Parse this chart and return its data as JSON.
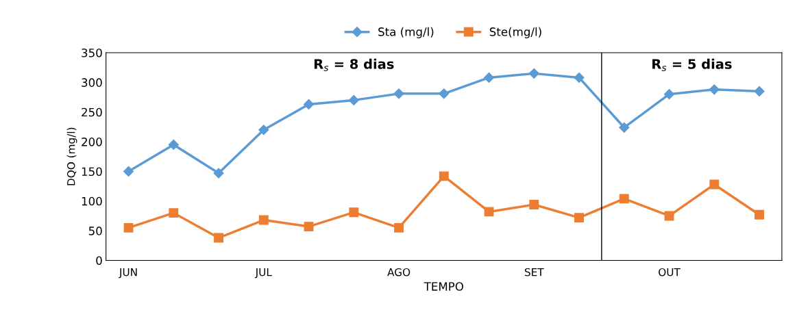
{
  "chart_data": {
    "type": "line",
    "xlabel": "TEMPO",
    "ylabel": "DQO (mg/l)",
    "categories": [
      "JUN",
      null,
      null,
      "JUL",
      null,
      null,
      "AGO",
      null,
      null,
      "SET",
      null,
      null,
      "OUT",
      null,
      null
    ],
    "series": [
      {
        "name": "Sta (mg/l)",
        "color": "#5b9bd5",
        "marker": "diamond",
        "values": [
          150,
          195,
          147,
          220,
          263,
          270,
          281,
          281,
          308,
          315,
          308,
          224,
          280,
          288,
          285
        ]
      },
      {
        "name": "Ste(mg/l)",
        "color": "#ed7d31",
        "marker": "square",
        "values": [
          55,
          80,
          38,
          68,
          57,
          81,
          55,
          142,
          82,
          94,
          72,
          104,
          75,
          128,
          77
        ]
      }
    ],
    "ylim": [
      0,
      350
    ],
    "yticks": [
      0,
      50,
      100,
      150,
      200,
      250,
      300,
      350
    ],
    "annotations": [
      "R$_{s}$ = 8 dias",
      "R$_{s}$ = 5 dias"
    ],
    "grid": false,
    "legend": "top"
  }
}
